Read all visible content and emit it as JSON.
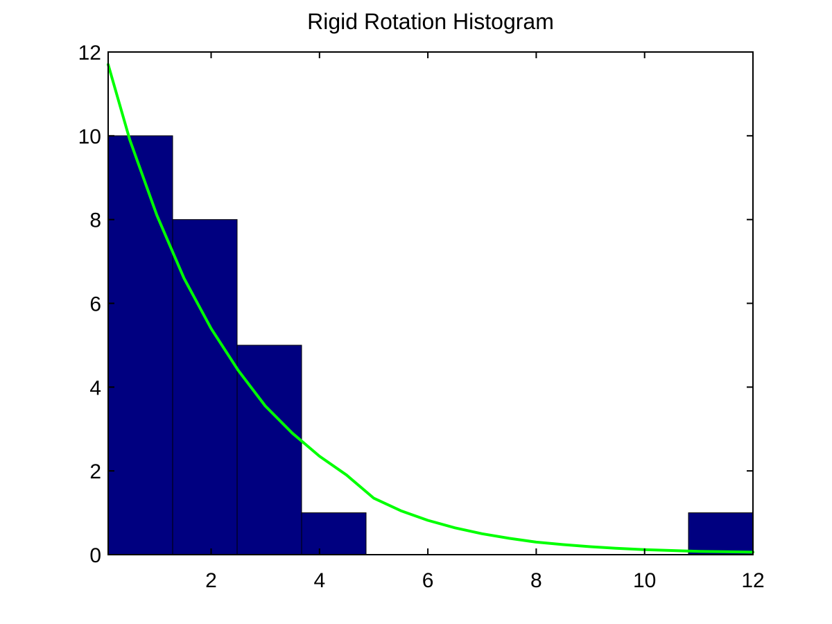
{
  "chart_data": {
    "type": "bar",
    "title": "Rigid Rotation Histogram",
    "xlabel": "",
    "ylabel": "",
    "xlim": [
      0.1,
      12
    ],
    "ylim": [
      0,
      12
    ],
    "x_ticks": [
      2,
      4,
      6,
      8,
      10,
      12
    ],
    "y_ticks": [
      0,
      2,
      4,
      6,
      8,
      10,
      12
    ],
    "grid": false,
    "bins": [
      {
        "x0": 0.1,
        "x1": 1.29,
        "value": 10
      },
      {
        "x0": 1.29,
        "x1": 2.48,
        "value": 8
      },
      {
        "x0": 2.48,
        "x1": 3.67,
        "value": 5
      },
      {
        "x0": 3.67,
        "x1": 4.86,
        "value": 1
      },
      {
        "x0": 4.86,
        "x1": 6.05,
        "value": 0
      },
      {
        "x0": 6.05,
        "x1": 7.24,
        "value": 0
      },
      {
        "x0": 7.24,
        "x1": 8.43,
        "value": 0
      },
      {
        "x0": 8.43,
        "x1": 9.62,
        "value": 0
      },
      {
        "x0": 9.62,
        "x1": 10.81,
        "value": 0
      },
      {
        "x0": 10.81,
        "x1": 12.0,
        "value": 1
      }
    ],
    "series": [
      {
        "type": "line",
        "x": [
          0.1,
          0.5,
          1.0,
          1.5,
          2.0,
          2.5,
          3.0,
          3.5,
          4.0,
          4.5,
          5.0,
          5.5,
          6.0,
          6.5,
          7.0,
          7.5,
          8.0,
          8.5,
          9.0,
          9.5,
          10.0,
          10.5,
          11.0,
          11.5,
          12.0
        ],
        "y": [
          11.7,
          9.9,
          8.1,
          6.6,
          5.4,
          4.4,
          3.55,
          2.9,
          2.35,
          1.9,
          1.35,
          1.05,
          0.82,
          0.64,
          0.5,
          0.39,
          0.3,
          0.24,
          0.19,
          0.15,
          0.12,
          0.1,
          0.08,
          0.07,
          0.06
        ]
      }
    ],
    "colors": {
      "bar_fill": "#000080",
      "bar_edge": "#000000",
      "curve": "#00ff00",
      "axes": "#000000"
    }
  }
}
